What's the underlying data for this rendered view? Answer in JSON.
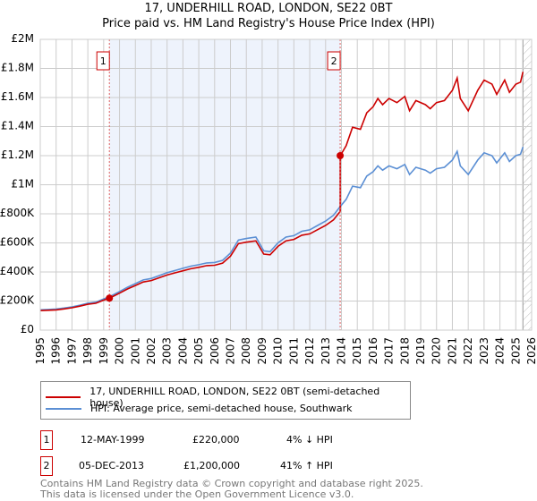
{
  "title_line1": "17, UNDERHILL ROAD, LONDON, SE22 0BT",
  "title_line2": "Price paid vs. HM Land Registry's House Price Index (HPI)",
  "chart_data": {
    "type": "line",
    "xlim": [
      1995,
      2026
    ],
    "ylim": [
      0,
      2000000
    ],
    "yticks": [
      0,
      200000,
      400000,
      600000,
      800000,
      1000000,
      1200000,
      1400000,
      1600000,
      1800000,
      2000000
    ],
    "ytick_labels": [
      "£0",
      "£200K",
      "£400K",
      "£600K",
      "£800K",
      "£1M",
      "£1.2M",
      "£1.4M",
      "£1.6M",
      "£1.8M",
      "£2M"
    ],
    "xticks": [
      1995,
      1996,
      1997,
      1998,
      1999,
      2000,
      2001,
      2002,
      2003,
      2004,
      2005,
      2006,
      2007,
      2008,
      2009,
      2010,
      2011,
      2012,
      2013,
      2014,
      2015,
      2016,
      2017,
      2018,
      2019,
      2020,
      2021,
      2022,
      2023,
      2024,
      2025,
      2026
    ],
    "grid": true,
    "shaded_range": [
      1999.36,
      2013.92
    ],
    "hatched_from": 2025.45,
    "series": [
      {
        "name": "17, UNDERHILL ROAD, LONDON, SE22 0BT (semi-detached house)",
        "color": "#cc0000",
        "derived": "hpi_scaled",
        "ratio_before_sale2": 0.96,
        "ratio_after_sale2": 1.41
      },
      {
        "name": "HPI: Average price, semi-detached house, Southwark",
        "color": "#5b8fd4",
        "x": [
          1995,
          1995.5,
          1996,
          1996.5,
          1997,
          1997.5,
          1998,
          1998.5,
          1999,
          1999.36,
          2000,
          2000.5,
          2001,
          2001.5,
          2002,
          2002.5,
          2003,
          2003.5,
          2004,
          2004.5,
          2005,
          2005.5,
          2006,
          2006.5,
          2007,
          2007.5,
          2008,
          2008.6,
          2009.1,
          2009.5,
          2010,
          2010.5,
          2011,
          2011.5,
          2012,
          2012.5,
          2013,
          2013.5,
          2013.92,
          2014.3,
          2014.7,
          2015.2,
          2015.6,
          2016,
          2016.3,
          2016.6,
          2017,
          2017.5,
          2018,
          2018.3,
          2018.7,
          2019.3,
          2019.6,
          2020,
          2020.5,
          2021,
          2021.3,
          2021.5,
          2022,
          2022.6,
          2023,
          2023.5,
          2023.8,
          2024.3,
          2024.6,
          2025,
          2025.3,
          2025.45
        ],
        "y": [
          140000,
          142000,
          145000,
          152000,
          160000,
          172000,
          185000,
          192000,
          215000,
          229000,
          265000,
          295000,
          320000,
          345000,
          355000,
          375000,
          395000,
          410000,
          425000,
          440000,
          450000,
          462000,
          465000,
          480000,
          530000,
          620000,
          630000,
          640000,
          545000,
          540000,
          600000,
          640000,
          650000,
          680000,
          690000,
          720000,
          750000,
          790000,
          850000,
          900000,
          990000,
          980000,
          1060000,
          1090000,
          1130000,
          1100000,
          1130000,
          1110000,
          1140000,
          1070000,
          1120000,
          1100000,
          1080000,
          1110000,
          1120000,
          1170000,
          1230000,
          1130000,
          1070000,
          1170000,
          1220000,
          1200000,
          1150000,
          1220000,
          1160000,
          1200000,
          1210000,
          1260000
        ]
      }
    ],
    "sales": [
      {
        "label": "1",
        "x": 1999.36,
        "price": 220000
      },
      {
        "label": "2",
        "x": 2013.92,
        "price": 1200000
      }
    ]
  },
  "legend": [
    {
      "label": "17, UNDERHILL ROAD, LONDON, SE22 0BT (semi-detached house)",
      "color": "#cc0000"
    },
    {
      "label": "HPI: Average price, semi-detached house, Southwark",
      "color": "#5b8fd4"
    }
  ],
  "annotations": [
    {
      "num": "1",
      "date": "12-MAY-1999",
      "price": "£220,000",
      "hpi": "4% ↓ HPI"
    },
    {
      "num": "2",
      "date": "05-DEC-2013",
      "price": "£1,200,000",
      "hpi": "41% ↑ HPI"
    }
  ],
  "footer_line1": "Contains HM Land Registry data © Crown copyright and database right 2025.",
  "footer_line2": "This data is licensed under the Open Government Licence v3.0."
}
